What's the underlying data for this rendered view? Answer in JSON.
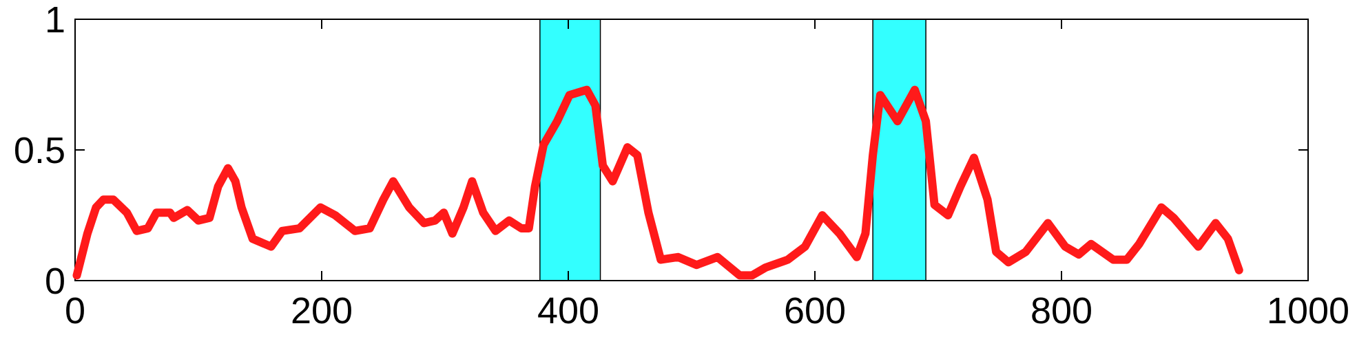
{
  "chart_data": {
    "type": "line",
    "x": [
      1.4,
      10,
      17,
      23,
      31,
      42,
      50,
      59,
      66,
      77,
      80,
      91,
      100,
      109,
      116,
      124,
      130,
      135,
      144,
      159,
      168,
      182,
      199,
      211,
      227,
      239,
      250,
      258,
      271,
      283,
      292,
      299,
      306,
      315,
      322,
      331,
      341,
      352,
      362,
      368,
      373,
      380,
      391,
      401,
      415,
      422,
      428,
      436,
      448,
      456,
      465,
      475,
      489,
      504,
      521,
      539,
      549,
      560,
      578,
      592,
      606,
      620,
      634,
      641,
      647,
      653,
      667,
      681,
      690,
      697,
      708,
      718,
      729,
      740,
      747,
      757,
      771,
      789,
      803,
      814,
      824,
      842,
      853,
      863,
      881,
      891,
      911,
      925,
      935,
      944
    ],
    "values": [
      0.02,
      0.18,
      0.28,
      0.31,
      0.31,
      0.26,
      0.19,
      0.2,
      0.26,
      0.26,
      0.24,
      0.27,
      0.23,
      0.24,
      0.36,
      0.43,
      0.38,
      0.28,
      0.16,
      0.13,
      0.19,
      0.2,
      0.28,
      0.25,
      0.19,
      0.2,
      0.31,
      0.38,
      0.28,
      0.22,
      0.23,
      0.26,
      0.18,
      0.28,
      0.38,
      0.26,
      0.19,
      0.23,
      0.2,
      0.2,
      0.36,
      0.52,
      0.61,
      0.71,
      0.73,
      0.67,
      0.44,
      0.38,
      0.51,
      0.48,
      0.26,
      0.08,
      0.09,
      0.06,
      0.09,
      0.02,
      0.02,
      0.05,
      0.08,
      0.13,
      0.25,
      0.18,
      0.09,
      0.18,
      0.48,
      0.71,
      0.61,
      0.73,
      0.61,
      0.29,
      0.25,
      0.36,
      0.47,
      0.31,
      0.11,
      0.07,
      0.11,
      0.22,
      0.13,
      0.1,
      0.14,
      0.08,
      0.08,
      0.14,
      0.28,
      0.24,
      0.13,
      0.22,
      0.16,
      0.04
    ],
    "color": "#ff1a1a",
    "highlight_regions": [
      [
        377,
        426
      ],
      [
        647,
        690
      ]
    ],
    "highlight_color": "#33ffff",
    "xlim": [
      0,
      1000
    ],
    "xticks": [
      0,
      200,
      400,
      600,
      800,
      1000
    ],
    "ylim": [
      0,
      1
    ],
    "yticks": [
      0,
      0.5,
      1
    ]
  }
}
